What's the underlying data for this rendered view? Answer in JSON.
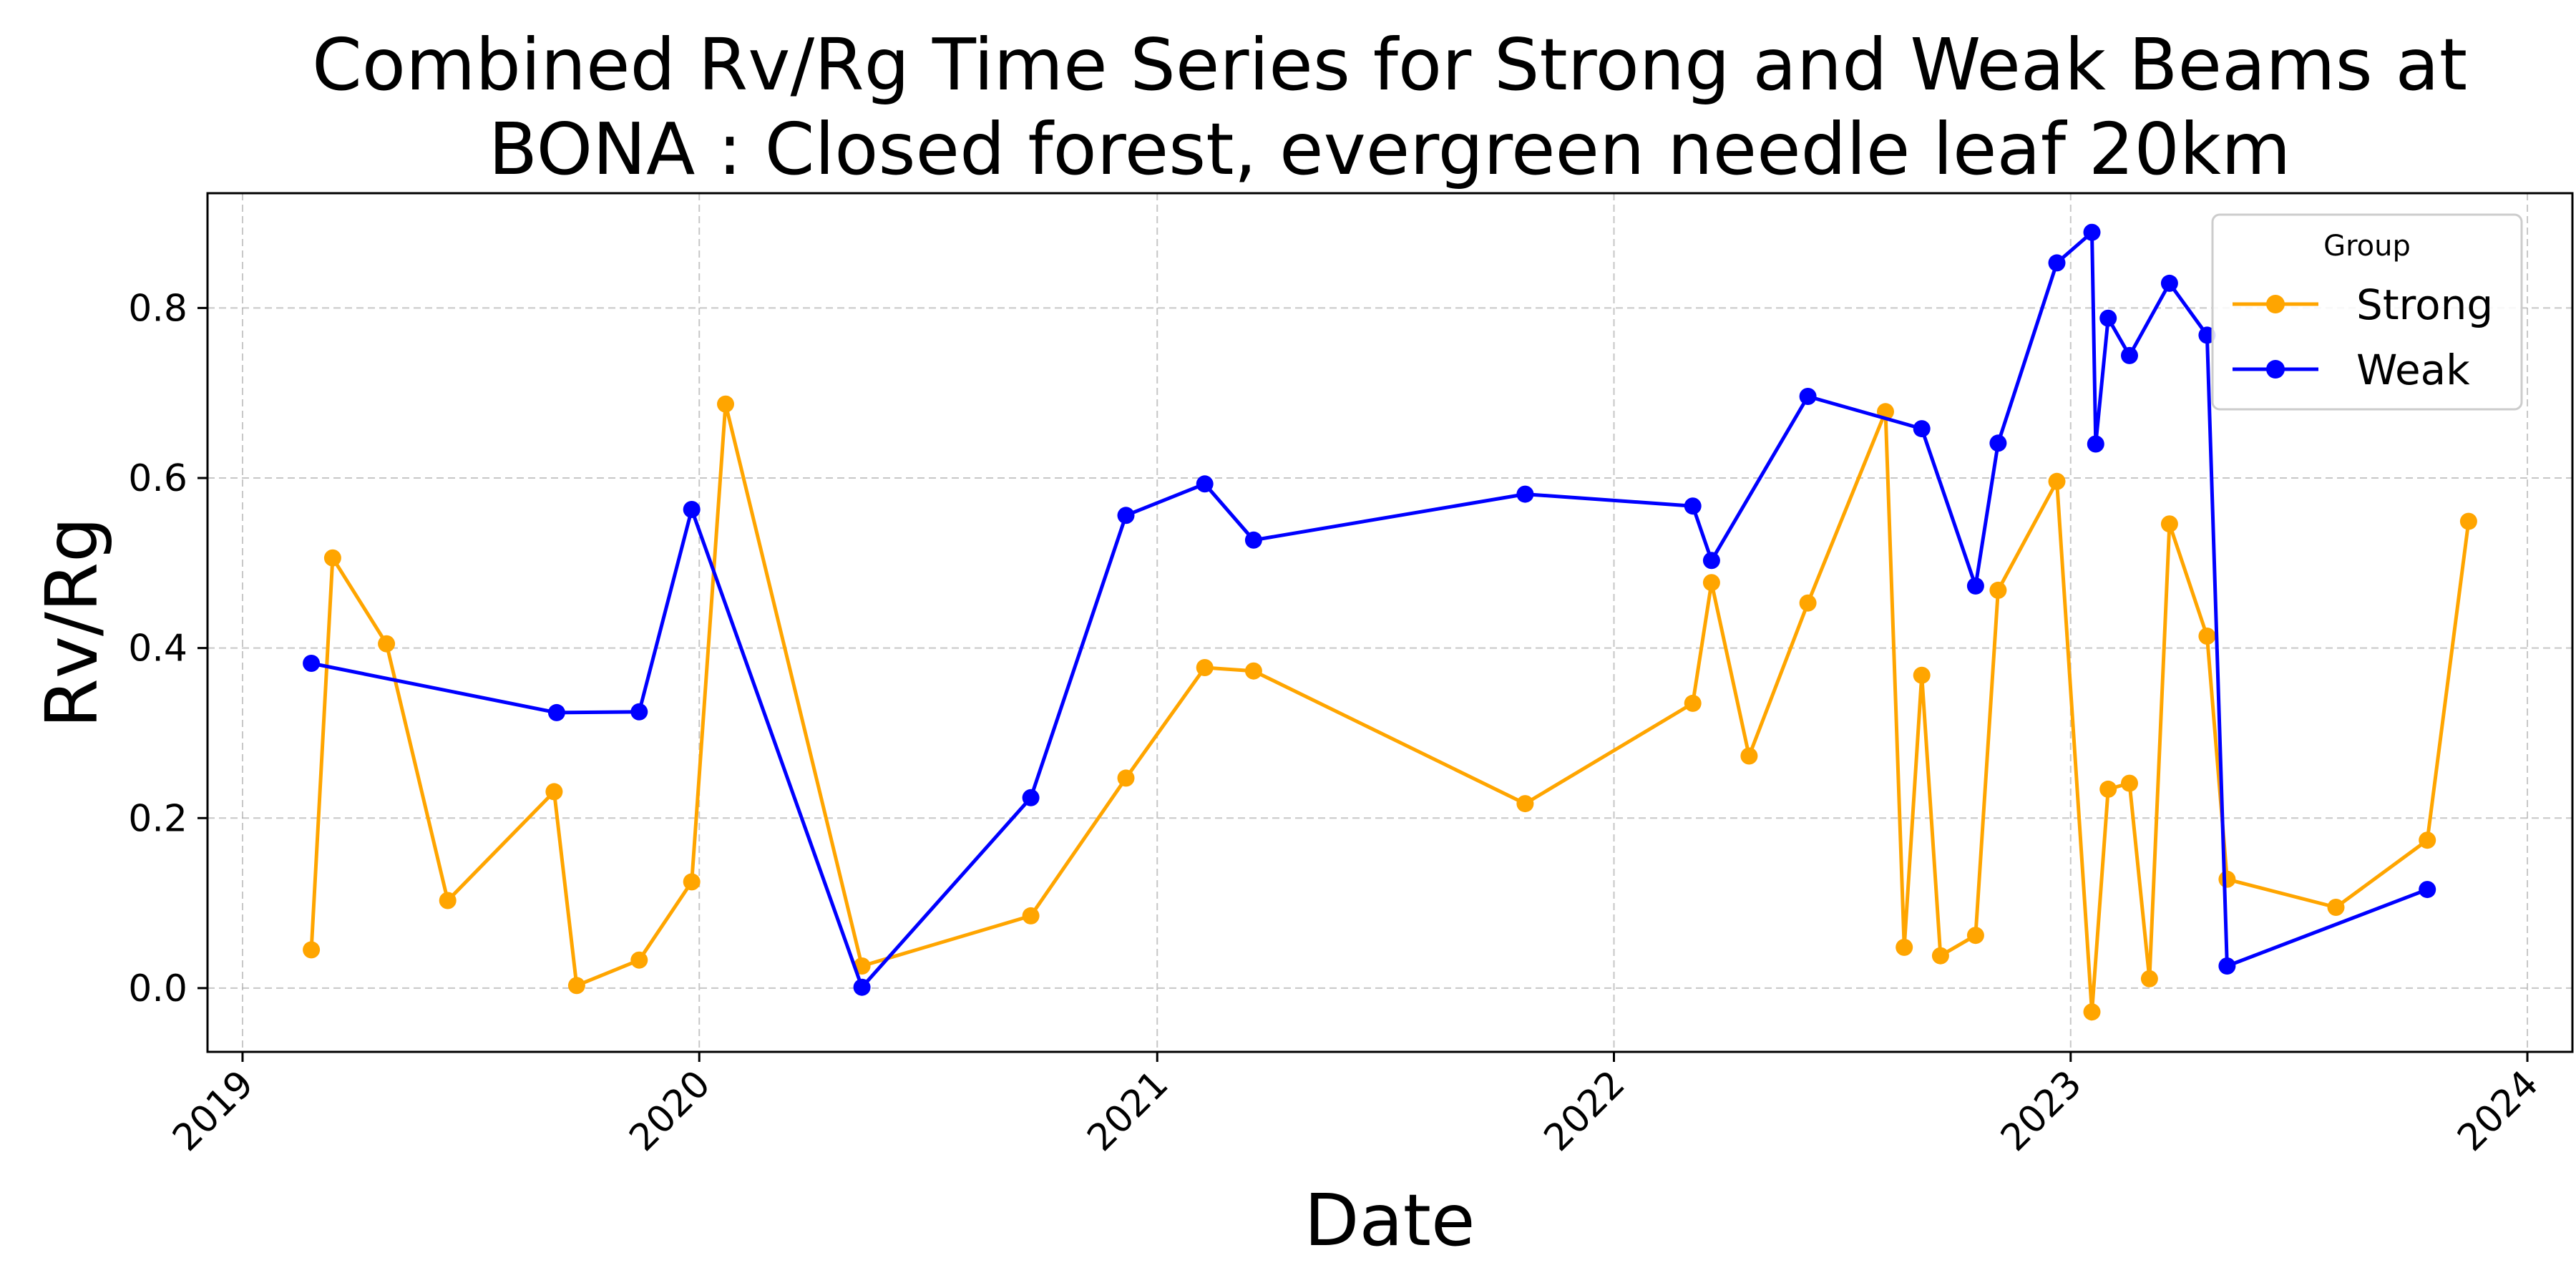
{
  "chart_data": {
    "type": "line",
    "title": "Combined Rv/Rg Time Series for Strong and Weak Beams at BONA : Closed forest, evergreen needle leaf 20km",
    "title_lines": [
      "Combined Rv/Rg Time Series for Strong and Weak Beams at",
      "BONA : Closed forest, evergreen needle leaf 20km"
    ],
    "xlabel": "Date",
    "ylabel": "Rv/Rg",
    "x_scale": "date",
    "xlim": [
      "2018-12-04",
      "2024-02-06"
    ],
    "ylim": [
      -0.075,
      0.935
    ],
    "x_ticks": [
      "2019",
      "2020",
      "2021",
      "2022",
      "2023",
      "2024"
    ],
    "y_ticks": [
      "0.0",
      "0.2",
      "0.4",
      "0.6",
      "0.8"
    ],
    "grid": true,
    "legend": {
      "title": "Group",
      "placement": "top-right"
    },
    "series": [
      {
        "name": "Strong",
        "color": "#FFA500",
        "points": [
          [
            "2019-02-25",
            0.045
          ],
          [
            "2019-03-14",
            0.506
          ],
          [
            "2019-04-26",
            0.405
          ],
          [
            "2019-06-14",
            0.103
          ],
          [
            "2019-09-07",
            0.231
          ],
          [
            "2019-09-25",
            0.003
          ],
          [
            "2019-11-14",
            0.033
          ],
          [
            "2019-12-26",
            0.125
          ],
          [
            "2020-01-22",
            0.687
          ],
          [
            "2020-05-10",
            0.026
          ],
          [
            "2020-09-22",
            0.085
          ],
          [
            "2020-12-07",
            0.247
          ],
          [
            "2021-02-08",
            0.377
          ],
          [
            "2021-03-19",
            0.373
          ],
          [
            "2021-10-22",
            0.217
          ],
          [
            "2022-03-05",
            0.335
          ],
          [
            "2022-03-20",
            0.477
          ],
          [
            "2022-04-19",
            0.273
          ],
          [
            "2022-06-05",
            0.453
          ],
          [
            "2022-08-06",
            0.678
          ],
          [
            "2022-08-21",
            0.048
          ],
          [
            "2022-09-04",
            0.368
          ],
          [
            "2022-09-19",
            0.038
          ],
          [
            "2022-10-17",
            0.062
          ],
          [
            "2022-11-04",
            0.468
          ],
          [
            "2022-12-21",
            0.596
          ],
          [
            "2023-01-18",
            -0.028
          ],
          [
            "2023-01-31",
            0.234
          ],
          [
            "2023-02-17",
            0.241
          ],
          [
            "2023-03-05",
            0.011
          ],
          [
            "2023-03-21",
            0.546
          ],
          [
            "2023-04-20",
            0.414
          ],
          [
            "2023-05-06",
            0.128
          ],
          [
            "2023-08-01",
            0.095
          ],
          [
            "2023-10-13",
            0.174
          ],
          [
            "2023-11-15",
            0.549
          ]
        ]
      },
      {
        "name": "Weak",
        "color": "#0000FF",
        "points": [
          [
            "2019-02-25",
            0.382
          ],
          [
            "2019-09-09",
            0.324
          ],
          [
            "2019-11-14",
            0.325
          ],
          [
            "2019-12-26",
            0.563
          ],
          [
            "2020-05-10",
            0.001
          ],
          [
            "2020-09-22",
            0.224
          ],
          [
            "2020-12-07",
            0.556
          ],
          [
            "2021-02-08",
            0.593
          ],
          [
            "2021-03-19",
            0.527
          ],
          [
            "2021-10-22",
            0.581
          ],
          [
            "2022-03-05",
            0.567
          ],
          [
            "2022-03-20",
            0.503
          ],
          [
            "2022-06-05",
            0.696
          ],
          [
            "2022-09-04",
            0.658
          ],
          [
            "2022-10-17",
            0.473
          ],
          [
            "2022-11-04",
            0.641
          ],
          [
            "2022-12-21",
            0.853
          ],
          [
            "2023-01-18",
            0.889
          ],
          [
            "2023-01-21",
            0.64
          ],
          [
            "2023-01-31",
            0.788
          ],
          [
            "2023-02-17",
            0.744
          ],
          [
            "2023-03-21",
            0.829
          ],
          [
            "2023-04-20",
            0.768
          ],
          [
            "2023-05-06",
            0.026
          ],
          [
            "2023-10-13",
            0.116
          ]
        ]
      }
    ]
  }
}
